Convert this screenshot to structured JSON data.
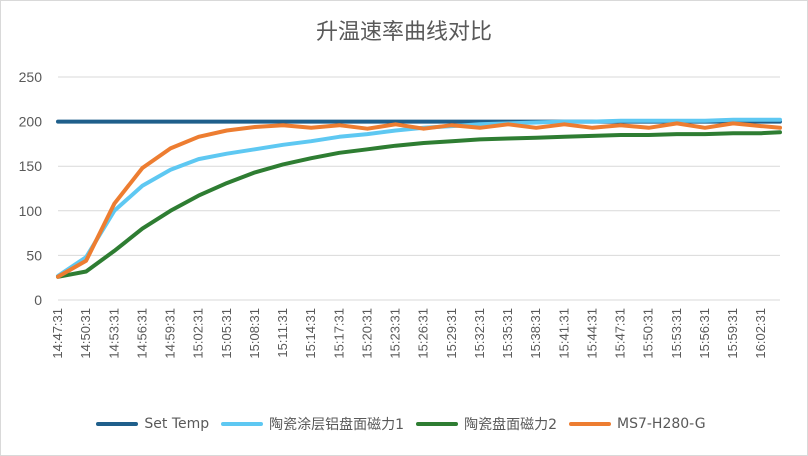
{
  "chart_data": {
    "type": "line",
    "title": "升温速率曲线对比",
    "xlabel": "",
    "ylabel": "",
    "ylim": [
      0,
      250
    ],
    "yticks": [
      0,
      50,
      100,
      150,
      200,
      250
    ],
    "grid": true,
    "legend_position": "bottom",
    "x_tick_labels": [
      "14:47:31",
      "14:50:31",
      "14:53:31",
      "14:56:31",
      "14:59:31",
      "15:02:31",
      "15:05:31",
      "15:08:31",
      "15:11:31",
      "15:14:31",
      "15:17:31",
      "15:20:31",
      "15:23:31",
      "15:26:31",
      "15:29:31",
      "15:32:31",
      "15:35:31",
      "15:38:31",
      "15:41:31",
      "15:44:31",
      "15:47:31",
      "15:50:31",
      "15:53:31",
      "15:56:31",
      "15:59:31",
      "16:02:31"
    ],
    "x": [
      "14:47:31",
      "14:50:31",
      "14:53:31",
      "14:56:31",
      "14:59:31",
      "15:02:31",
      "15:05:31",
      "15:08:31",
      "15:11:31",
      "15:14:31",
      "15:17:31",
      "15:20:31",
      "15:23:31",
      "15:26:31",
      "15:29:31",
      "15:32:31",
      "15:35:31",
      "15:38:31",
      "15:41:31",
      "15:44:31",
      "15:47:31",
      "15:50:31",
      "15:53:31",
      "15:56:31",
      "15:59:31",
      "16:02:31",
      "16:04:31"
    ],
    "series": [
      {
        "name": "Set Temp",
        "color": "#1f5f8b",
        "values": [
          200,
          200,
          200,
          200,
          200,
          200,
          200,
          200,
          200,
          200,
          200,
          200,
          200,
          200,
          200,
          200,
          200,
          200,
          200,
          200,
          200,
          200,
          200,
          200,
          200,
          200,
          200
        ]
      },
      {
        "name": "陶瓷涂层铝盘面磁力1",
        "color": "#5ec8f2",
        "values": [
          27,
          48,
          100,
          128,
          146,
          158,
          164,
          169,
          174,
          178,
          183,
          186,
          190,
          193,
          195,
          197,
          198,
          199,
          200,
          200,
          201,
          201,
          201,
          201,
          202,
          202,
          202
        ]
      },
      {
        "name": "陶瓷盘面磁力2",
        "color": "#2e7d32",
        "values": [
          26,
          32,
          55,
          80,
          100,
          117,
          131,
          143,
          152,
          159,
          165,
          169,
          173,
          176,
          178,
          180,
          181,
          182,
          183,
          184,
          185,
          185,
          186,
          186,
          187,
          187,
          188
        ]
      },
      {
        "name": "MS7-H280-G",
        "color": "#ed7d31",
        "values": [
          26,
          44,
          108,
          148,
          170,
          183,
          190,
          194,
          196,
          193,
          196,
          192,
          197,
          192,
          196,
          193,
          197,
          193,
          197,
          193,
          196,
          193,
          198,
          193,
          198,
          195,
          193
        ]
      }
    ]
  }
}
